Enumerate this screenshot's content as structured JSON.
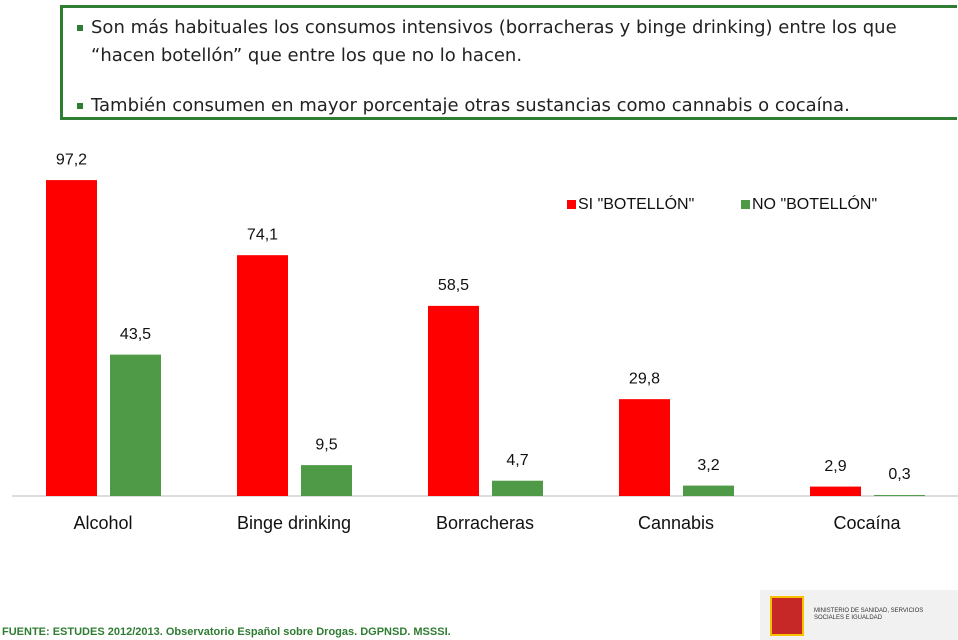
{
  "bullets": [
    "Son más habituales los consumos intensivos (borracheras y binge drinking) entre los que “hacen botellón” que entre los que no lo hacen.",
    "También consumen en mayor porcentaje otras sustancias como cannabis o cocaína."
  ],
  "chart_data": {
    "type": "bar",
    "categories": [
      "Alcohol",
      "Binge drinking",
      "Borracheras",
      "Cannabis",
      "Cocaína"
    ],
    "series": [
      {
        "name": "SI \"BOTELLÓN\"",
        "color": "#ff0000",
        "values": [
          97.2,
          74.1,
          58.5,
          29.8,
          2.9
        ],
        "value_labels": [
          "97,2",
          "74,1",
          "58,5",
          "29,8",
          "2,9"
        ]
      },
      {
        "name": "NO \"BOTELLÓN\"",
        "color": "#4e9a47",
        "values": [
          43.5,
          9.5,
          4.7,
          3.2,
          0.3
        ],
        "value_labels": [
          "43,5",
          "9,5",
          "4,7",
          "3,2",
          "0,3"
        ]
      }
    ],
    "legend": "top-right"
  },
  "source": "FUENTE: ESTUDES 2012/2013. Observatorio Español sobre Drogas. DGPNSD. MSSSI.",
  "logo": "MINISTERIO DE SANIDAD, SERVICIOS SOCIALES E IGUALDAD"
}
